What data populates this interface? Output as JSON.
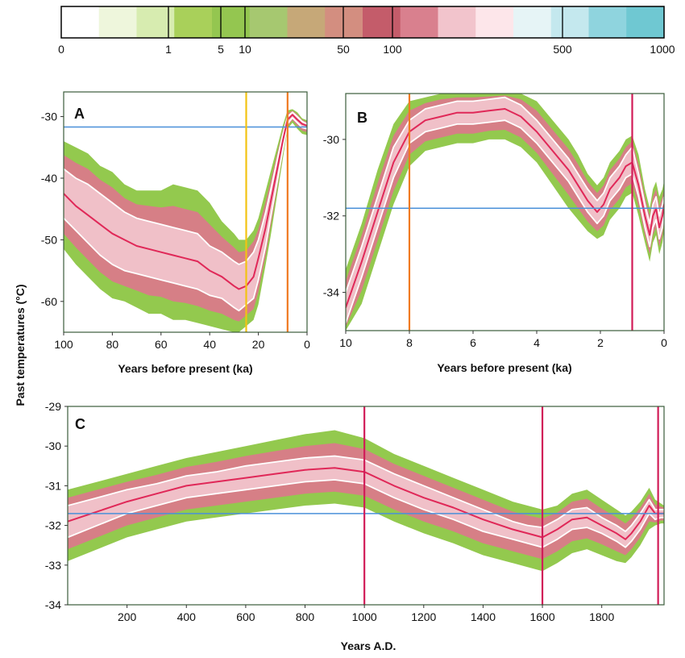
{
  "colorbar": {
    "ticks": [
      "0",
      "1",
      "5",
      "10",
      "50",
      "100",
      "500",
      "1000"
    ],
    "tick_values": [
      0,
      1,
      5,
      10,
      50,
      100,
      500,
      1000
    ],
    "colors": [
      "#ffffff",
      "#eef6dc",
      "#d7ecb0",
      "#a9d05a",
      "#94c650",
      "#a6c870",
      "#c6a878",
      "#d38e80",
      "#c45c6a",
      "#d9808e",
      "#f2c4cc",
      "#fde6ea",
      "#e6f4f6",
      "#c4e8ee",
      "#8fd4de",
      "#6fc8d2"
    ]
  },
  "colors": {
    "ensemble_outer": "#93c94e",
    "ensemble_mid": "#d67f86",
    "ensemble_inner": "#f5cbd3",
    "mean_line": "#e02858",
    "sd_line": "#ffffff",
    "reference_line": "#4a90d9",
    "vline_yellow": "#f2c313",
    "vline_orange": "#f07a22",
    "vline_magenta": "#d11c58"
  },
  "shared_ylabel": "Past temperatures (°C)",
  "chart_data": [
    {
      "type": "line",
      "panel": "A",
      "xlabel": "Years before present (ka)",
      "ylabel": "Past temperatures (°C)",
      "xlim": [
        100,
        0
      ],
      "ylim": [
        -65,
        -26
      ],
      "xticks": [
        100,
        80,
        60,
        40,
        20,
        0
      ],
      "yticks": [
        -30,
        -40,
        -50,
        -60
      ],
      "reference_line_y": -31.7,
      "vlines": [
        {
          "x": 25,
          "color": "yellow"
        },
        {
          "x": 8,
          "color": "orange"
        }
      ],
      "series": [
        {
          "x": [
            100,
            95,
            90,
            85,
            80,
            75,
            70,
            65,
            60,
            55,
            50,
            45,
            40,
            35,
            30,
            28,
            25,
            22,
            20,
            17,
            15,
            12,
            10,
            8,
            6,
            4,
            2,
            0
          ],
          "mean": [
            -42.5,
            -44.5,
            -46,
            -47.5,
            -49,
            -50,
            -51,
            -51.5,
            -52,
            -52.5,
            -53,
            -53.5,
            -55,
            -56,
            -57.5,
            -58,
            -57.5,
            -56,
            -53,
            -48,
            -44,
            -38,
            -34,
            -30.5,
            -29.7,
            -30.5,
            -31.2,
            -31.5
          ],
          "upper": [
            -38.5,
            -40,
            -41,
            -42.5,
            -44,
            -45.5,
            -46.5,
            -47,
            -47.5,
            -48,
            -48.5,
            -49,
            -51,
            -52,
            -53.5,
            -54,
            -53.5,
            -52,
            -50,
            -45.5,
            -42,
            -36.5,
            -33,
            -30,
            -29.3,
            -30,
            -30.8,
            -31.2
          ],
          "lower": [
            -46.5,
            -48.5,
            -50.5,
            -52.5,
            -54,
            -55,
            -55.5,
            -56,
            -56.5,
            -57,
            -57.5,
            -58,
            -59,
            -59.5,
            -61,
            -61.5,
            -60.5,
            -59.5,
            -56.5,
            -51,
            -46.5,
            -40,
            -35.5,
            -31.2,
            -30.2,
            -31,
            -31.8,
            -32
          ],
          "outer_upper": [
            -34,
            -35,
            -36,
            -38,
            -39,
            -41,
            -42,
            -42,
            -42,
            -41,
            -41.5,
            -42,
            -44,
            -47,
            -49,
            -50,
            -50,
            -48.5,
            -46.5,
            -42,
            -39,
            -34.5,
            -31.5,
            -29,
            -28.8,
            -29.3,
            -30.3,
            -30.6
          ],
          "outer_lower": [
            -51.5,
            -54,
            -56,
            -58,
            -59.5,
            -60,
            -61,
            -62,
            -62,
            -63,
            -63,
            -63.5,
            -64,
            -64.5,
            -65,
            -65,
            -64,
            -63,
            -60.5,
            -54,
            -49.5,
            -42,
            -37,
            -32,
            -31,
            -32,
            -32.8,
            -33
          ]
        }
      ]
    },
    {
      "type": "line",
      "panel": "B",
      "xlabel": "Years before present (ka)",
      "ylabel": "",
      "xlim": [
        10,
        0
      ],
      "ylim": [
        -35,
        -28.8
      ],
      "xticks": [
        10,
        8,
        6,
        4,
        2,
        0
      ],
      "yticks": [
        -30,
        -32,
        -34
      ],
      "reference_line_y": -31.8,
      "vlines": [
        {
          "x": 8,
          "color": "orange"
        },
        {
          "x": 1,
          "color": "magenta"
        }
      ],
      "series": [
        {
          "x": [
            10,
            9.5,
            9,
            8.5,
            8,
            7.5,
            7,
            6.5,
            6,
            5.5,
            5,
            4.5,
            4,
            3.5,
            3,
            2.7,
            2.4,
            2.1,
            1.9,
            1.7,
            1.4,
            1.2,
            1.0,
            0.8,
            0.6,
            0.45,
            0.35,
            0.25,
            0.15,
            0.05,
            0
          ],
          "mean": [
            -34.4,
            -33.2,
            -31.9,
            -30.6,
            -29.8,
            -29.5,
            -29.4,
            -29.3,
            -29.3,
            -29.25,
            -29.2,
            -29.4,
            -29.8,
            -30.3,
            -30.8,
            -31.2,
            -31.6,
            -31.9,
            -31.7,
            -31.3,
            -31.0,
            -30.7,
            -30.6,
            -31.2,
            -32.0,
            -32.5,
            -32.0,
            -31.8,
            -32.3,
            -32.0,
            -31.7
          ],
          "upper": [
            -34.0,
            -32.8,
            -31.5,
            -30.2,
            -29.5,
            -29.2,
            -29.1,
            -29.0,
            -29.0,
            -28.95,
            -28.9,
            -29.1,
            -29.5,
            -30.0,
            -30.5,
            -30.9,
            -31.3,
            -31.6,
            -31.4,
            -31.0,
            -30.7,
            -30.4,
            -30.2,
            -30.9,
            -31.7,
            -32.2,
            -31.7,
            -31.5,
            -32.0,
            -31.7,
            -31.5
          ],
          "lower": [
            -34.8,
            -33.6,
            -32.3,
            -31.0,
            -30.1,
            -29.8,
            -29.7,
            -29.6,
            -29.6,
            -29.55,
            -29.5,
            -29.7,
            -30.1,
            -30.6,
            -31.1,
            -31.5,
            -31.9,
            -32.2,
            -32.0,
            -31.6,
            -31.3,
            -31.0,
            -30.9,
            -31.5,
            -32.3,
            -32.8,
            -32.3,
            -32.1,
            -32.6,
            -32.3,
            -31.9
          ],
          "outer_upper": [
            -33.4,
            -32.2,
            -30.8,
            -29.6,
            -29.0,
            -28.9,
            -28.8,
            -28.8,
            -28.8,
            -28.8,
            -28.8,
            -28.8,
            -29.0,
            -29.5,
            -30.0,
            -30.4,
            -30.9,
            -31.2,
            -31.0,
            -30.6,
            -30.3,
            -30.0,
            -29.9,
            -30.4,
            -31.3,
            -31.8,
            -31.3,
            -31.1,
            -31.5,
            -31.3,
            -31.1
          ],
          "outer_lower": [
            -35.0,
            -34.3,
            -33.0,
            -31.7,
            -30.7,
            -30.3,
            -30.2,
            -30.1,
            -30.1,
            -30.0,
            -30.0,
            -30.2,
            -30.6,
            -31.2,
            -31.8,
            -32.1,
            -32.4,
            -32.6,
            -32.5,
            -32.1,
            -31.8,
            -31.5,
            -31.4,
            -32.0,
            -32.7,
            -33.2,
            -32.7,
            -32.5,
            -33.0,
            -32.7,
            -32.4
          ]
        }
      ]
    },
    {
      "type": "line",
      "panel": "C",
      "xlabel": "Years A.D.",
      "ylabel": "",
      "xlim": [
        0,
        2010
      ],
      "ylim": [
        -34,
        -29
      ],
      "xticks": [
        200,
        400,
        600,
        800,
        1000,
        1200,
        1400,
        1600,
        1800
      ],
      "yticks": [
        -29,
        -30,
        -31,
        -32,
        -33,
        -34
      ],
      "reference_line_y": -31.7,
      "vlines": [
        {
          "x": 1000,
          "color": "magenta"
        },
        {
          "x": 1600,
          "color": "magenta"
        },
        {
          "x": 1990,
          "color": "magenta"
        }
      ],
      "series": [
        {
          "x": [
            0,
            100,
            200,
            300,
            400,
            500,
            600,
            700,
            800,
            900,
            1000,
            1100,
            1200,
            1300,
            1400,
            1500,
            1550,
            1600,
            1650,
            1700,
            1750,
            1800,
            1850,
            1880,
            1900,
            1930,
            1960,
            1980,
            2000,
            2010
          ],
          "mean": [
            -31.9,
            -31.65,
            -31.4,
            -31.2,
            -31.0,
            -30.9,
            -30.8,
            -30.7,
            -30.6,
            -30.55,
            -30.65,
            -31.0,
            -31.3,
            -31.55,
            -31.85,
            -32.1,
            -32.2,
            -32.3,
            -32.1,
            -31.85,
            -31.8,
            -32.0,
            -32.2,
            -32.35,
            -32.2,
            -31.9,
            -31.5,
            -31.7,
            -31.7,
            -31.7
          ],
          "upper": [
            -31.5,
            -31.3,
            -31.1,
            -30.95,
            -30.75,
            -30.65,
            -30.5,
            -30.4,
            -30.3,
            -30.25,
            -30.35,
            -30.7,
            -31.0,
            -31.3,
            -31.6,
            -31.9,
            -32.0,
            -32.05,
            -31.85,
            -31.6,
            -31.55,
            -31.8,
            -32.0,
            -32.15,
            -32.0,
            -31.7,
            -31.35,
            -31.6,
            -31.6,
            -31.6
          ],
          "lower": [
            -32.3,
            -32.0,
            -31.7,
            -31.5,
            -31.3,
            -31.2,
            -31.1,
            -31.0,
            -30.9,
            -30.85,
            -30.95,
            -31.3,
            -31.6,
            -31.85,
            -32.15,
            -32.35,
            -32.45,
            -32.55,
            -32.35,
            -32.1,
            -32.05,
            -32.2,
            -32.4,
            -32.55,
            -32.4,
            -32.1,
            -31.7,
            -31.85,
            -31.8,
            -31.8
          ],
          "outer_upper": [
            -31.1,
            -30.9,
            -30.7,
            -30.5,
            -30.3,
            -30.15,
            -30.0,
            -29.85,
            -29.7,
            -29.6,
            -29.8,
            -30.2,
            -30.5,
            -30.8,
            -31.1,
            -31.4,
            -31.5,
            -31.6,
            -31.5,
            -31.2,
            -31.1,
            -31.35,
            -31.6,
            -31.75,
            -31.65,
            -31.4,
            -31.05,
            -31.35,
            -31.45,
            -31.5
          ],
          "outer_lower": [
            -32.9,
            -32.6,
            -32.3,
            -32.1,
            -31.9,
            -31.8,
            -31.7,
            -31.6,
            -31.5,
            -31.45,
            -31.55,
            -31.9,
            -32.2,
            -32.45,
            -32.75,
            -32.95,
            -33.05,
            -33.15,
            -32.95,
            -32.7,
            -32.6,
            -32.75,
            -32.9,
            -32.95,
            -32.8,
            -32.5,
            -32.1,
            -32.0,
            -31.95,
            -31.95
          ]
        }
      ]
    }
  ]
}
